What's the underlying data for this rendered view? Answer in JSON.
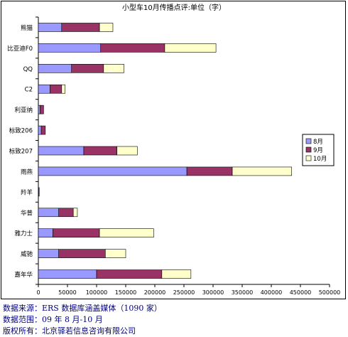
{
  "chart_data": {
    "type": "bar",
    "orientation": "horizontal",
    "stacked": true,
    "title": "小型车10月传播点评:单位（字）",
    "categories": [
      "嘉年华",
      "威驰",
      "雅力士",
      "华普",
      "羚羊",
      "雨燕",
      "标致207",
      "标致206",
      "利亚纳",
      "C2",
      "QQ",
      "比亚迪F0",
      "熊猫"
    ],
    "series": [
      {
        "name": "8月",
        "color": "#9999ff",
        "values": [
          100000,
          35000,
          25000,
          35000,
          1000,
          255000,
          78000,
          5000,
          3000,
          20000,
          57000,
          107000,
          40000
        ]
      },
      {
        "name": "9月",
        "color": "#993366",
        "values": [
          112000,
          80000,
          80000,
          25000,
          500,
          78000,
          57000,
          7000,
          6000,
          20000,
          55000,
          110000,
          65000
        ]
      },
      {
        "name": "10月",
        "color": "#ffffcc",
        "values": [
          50000,
          35000,
          93000,
          7000,
          0,
          102000,
          35000,
          0,
          0,
          6000,
          35000,
          88000,
          23000
        ]
      }
    ],
    "xlim": [
      0,
      500000
    ],
    "xticks": [
      "0",
      "50000",
      "100000",
      "150000",
      "200000",
      "250000",
      "300000",
      "350000",
      "400000",
      "450000",
      "500000"
    ],
    "grid": false,
    "legend_position": "right"
  },
  "footer": {
    "source": "数据来源：ERS 数据库涵盖媒体（1090 家）",
    "range": "数据范围：09 年 8 月-10 月",
    "copyright": "版权所有：北京驿若信息咨询有限公司"
  }
}
